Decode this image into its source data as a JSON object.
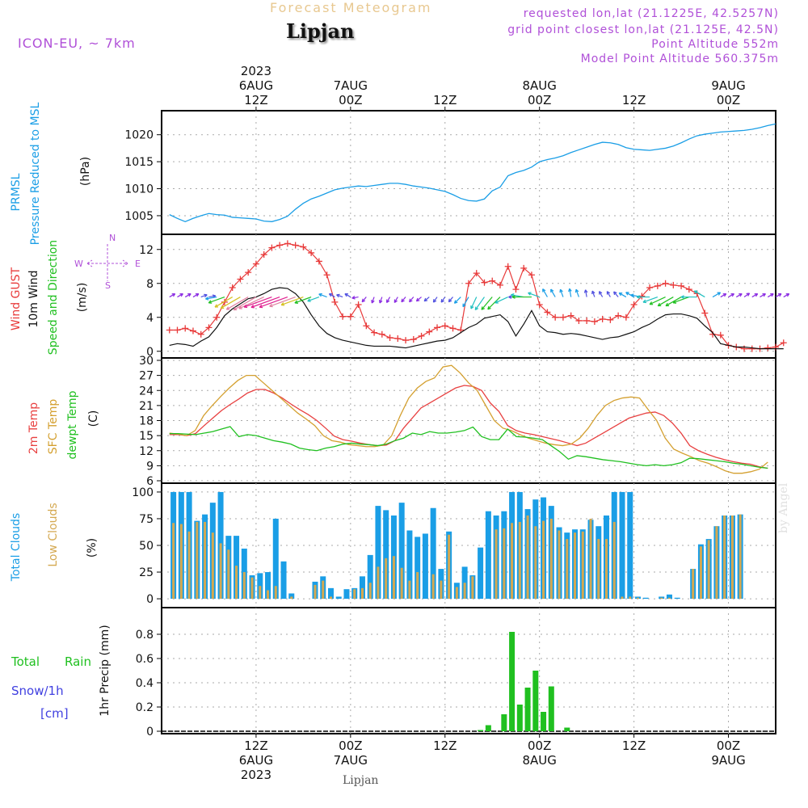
{
  "header": {
    "title": "Forecast Meteogram",
    "place": "Lipjan",
    "model": "ICON-EU, ~ 7km",
    "requested": "requested lon,lat (21.1225E, 42.5257N)",
    "grid_point": "grid point closest lon,lat (21.125E, 42.5N)",
    "point_altitude": "Point Altitude 552m",
    "model_altitude": "Model Point Altitude 560.375m"
  },
  "bottom_label": "Lipjan",
  "watermark": "by Angel",
  "colors": {
    "pressure": "#1a9ee6",
    "gust": "#e83a3a",
    "wind": "#111111",
    "direction": "#20c020",
    "temp2m": "#e84040",
    "sfc": "#d4a030",
    "dewpt": "#20c020",
    "total_cloud": "#1a9ee6",
    "low_cloud": "#d4a850",
    "rain": "#20c020",
    "snow": "#4040e0",
    "violet": "#b050d8"
  },
  "chart_data": {
    "type": "meteogram",
    "hours": [
      0,
      1,
      2,
      3,
      4,
      5,
      6,
      7,
      8,
      9,
      10,
      11,
      12,
      13,
      14,
      15,
      16,
      17,
      18,
      19,
      20,
      21,
      22,
      23,
      24,
      25,
      26,
      27,
      28,
      29,
      30,
      31,
      32,
      33,
      34,
      35,
      36,
      37,
      38,
      39,
      40,
      41,
      42,
      43,
      44,
      45,
      46,
      47,
      48,
      49,
      50,
      51,
      52,
      53,
      54,
      55,
      56,
      57,
      58,
      59,
      60,
      61,
      62,
      63,
      64,
      65,
      66,
      67,
      68,
      69,
      70,
      71,
      72,
      73,
      74,
      75,
      76,
      77
    ],
    "time_axis": {
      "top": [
        {
          "hour": 11,
          "lines": [
            "2023",
            "6AUG",
            "12Z"
          ]
        },
        {
          "hour": 23,
          "lines": [
            "7AUG",
            "00Z"
          ]
        },
        {
          "hour": 35,
          "lines": [
            "12Z"
          ]
        },
        {
          "hour": 47,
          "lines": [
            "8AUG",
            "00Z"
          ]
        },
        {
          "hour": 59,
          "lines": [
            "12Z"
          ]
        },
        {
          "hour": 71,
          "lines": [
            "9AUG",
            "00Z"
          ]
        }
      ],
      "bottom": [
        {
          "hour": 11,
          "lines": [
            "12Z",
            "6AUG",
            "2023"
          ]
        },
        {
          "hour": 23,
          "lines": [
            "00Z",
            "7AUG"
          ]
        },
        {
          "hour": 35,
          "lines": [
            "12Z"
          ]
        },
        {
          "hour": 47,
          "lines": [
            "00Z",
            "8AUG"
          ]
        },
        {
          "hour": 59,
          "lines": [
            "12Z"
          ]
        },
        {
          "hour": 71,
          "lines": [
            "00Z",
            "9AUG"
          ]
        }
      ]
    },
    "panels": [
      {
        "id": "pressure",
        "labels": [
          {
            "text": "PRMSL",
            "color": "#1a9ee6"
          },
          {
            "text": "Pressure Reduced to MSL",
            "color": "#1a9ee6"
          },
          {
            "text": "(hPa)",
            "color": "#111111"
          }
        ],
        "ylim": [
          1002,
          1024
        ],
        "yticks": [
          1005,
          1010,
          1015,
          1020
        ],
        "series": [
          {
            "values": [
              1005.2,
              1004.5,
              1003.9,
              1004.5,
              1005.0,
              1005.4,
              1005.2,
              1005.1,
              1004.7,
              1004.6,
              1004.5,
              1004.4,
              1004.0,
              1003.9,
              1004.3,
              1004.9,
              1006.2,
              1007.3,
              1008.1,
              1008.6,
              1009.2,
              1009.8,
              1010.1,
              1010.3,
              1010.5,
              1010.4,
              1010.6,
              1010.8,
              1011.0,
              1011.0,
              1010.8,
              1010.5,
              1010.3,
              1010.1,
              1009.8,
              1009.5,
              1008.9,
              1008.2,
              1007.8,
              1007.7,
              1008.1,
              1009.6,
              1010.3,
              1012.4,
              1013.0,
              1013.4,
              1014.0,
              1015.0,
              1015.4,
              1015.7,
              1016.1,
              1016.7,
              1017.2,
              1017.7,
              1018.2,
              1018.6,
              1018.5,
              1018.2,
              1017.6,
              1017.3,
              1017.2,
              1017.1,
              1017.3,
              1017.5,
              1017.9,
              1018.5,
              1019.2,
              1019.8,
              1020.1,
              1020.3,
              1020.5,
              1020.6,
              1020.7,
              1020.8,
              1021.0,
              1021.3,
              1021.7,
              1022.0
            ]
          }
        ]
      },
      {
        "id": "wind",
        "labels": [
          {
            "text": "Wind GUST",
            "color": "#e83a3a"
          },
          {
            "text": "10m Wind",
            "color": "#111111"
          },
          {
            "text": "Speed and Direction",
            "color": "#20c020"
          },
          {
            "text": "(m/s)",
            "color": "#111111"
          }
        ],
        "compass": [
          "N",
          "W",
          "E",
          "S"
        ],
        "ylim": [
          -0.5,
          13.5
        ],
        "yticks": [
          0,
          4,
          8,
          12
        ],
        "gust": [
          2.5,
          2.5,
          2.7,
          2.4,
          2.0,
          2.8,
          4.0,
          5.8,
          7.5,
          8.5,
          9.3,
          10.3,
          11.4,
          12.2,
          12.5,
          12.7,
          12.5,
          12.3,
          11.6,
          10.6,
          9.0,
          5.8,
          4.1,
          4.1,
          5.5,
          3.0,
          2.2,
          2.0,
          1.6,
          1.5,
          1.3,
          1.4,
          1.8,
          2.3,
          2.8,
          3.0,
          2.7,
          2.5,
          8.0,
          9.2,
          8.1,
          8.3,
          7.8,
          10.0,
          7.3,
          9.8,
          9.0,
          5.5,
          4.6,
          4.0,
          4.0,
          4.2,
          3.6,
          3.6,
          3.5,
          3.8,
          3.7,
          4.2,
          4.0,
          5.5,
          6.5,
          7.5,
          7.7,
          8.0,
          7.8,
          7.7,
          7.3,
          6.8,
          4.5,
          2.0,
          1.9,
          0.7,
          0.5,
          0.3,
          0.3,
          0.3,
          0.4,
          0.5,
          1.0
        ],
        "wind": [
          0.7,
          0.9,
          0.8,
          0.6,
          1.2,
          1.7,
          2.8,
          4.2,
          5.0,
          5.6,
          6.2,
          6.4,
          6.8,
          7.3,
          7.5,
          7.4,
          6.8,
          5.8,
          4.3,
          3.0,
          2.1,
          1.6,
          1.3,
          1.1,
          0.9,
          0.7,
          0.6,
          0.6,
          0.6,
          0.5,
          0.4,
          0.6,
          0.8,
          1.0,
          1.2,
          1.3,
          1.6,
          2.2,
          2.8,
          3.2,
          3.9,
          4.1,
          4.3,
          3.5,
          1.8,
          3.2,
          4.8,
          3.0,
          2.3,
          2.2,
          2.0,
          2.1,
          2.0,
          1.8,
          1.6,
          1.4,
          1.6,
          1.7,
          2.0,
          2.3,
          2.8,
          3.2,
          3.8,
          4.3,
          4.4,
          4.4,
          4.2,
          3.9,
          3.0,
          2.2,
          0.9,
          0.7,
          0.5,
          0.5,
          0.4,
          0.3,
          0.3,
          0.3,
          0.3
        ],
        "direction_deg": [
          60,
          60,
          60,
          60,
          70,
          80,
          260,
          250,
          240,
          240,
          240,
          240,
          245,
          250,
          250,
          250,
          250,
          250,
          250,
          250,
          290,
          300,
          290,
          300,
          260,
          220,
          200,
          200,
          210,
          210,
          220,
          220,
          230,
          230,
          215,
          215,
          220,
          225,
          210,
          205,
          215,
          220,
          225,
          245,
          270,
          280,
          270,
          290,
          330,
          330,
          340,
          350,
          340,
          350,
          340,
          330,
          330,
          320,
          300,
          300,
          280,
          270,
          250,
          245,
          240,
          240,
          250,
          270,
          300,
          60,
          60,
          60,
          60,
          55,
          60,
          60,
          60,
          60,
          60
        ]
      },
      {
        "id": "temp",
        "labels": [
          {
            "text": "2m Temp",
            "color": "#e84040"
          },
          {
            "text": "SFC Temp",
            "color": "#d4a030"
          },
          {
            "text": "dewpt Temp",
            "color": "#20c020"
          },
          {
            "text": "(C)",
            "color": "#111111"
          }
        ],
        "ylim": [
          6,
          30
        ],
        "yticks": [
          6,
          9,
          12,
          15,
          18,
          21,
          24,
          27,
          30
        ],
        "series": [
          {
            "name": "2m Temp",
            "color": "#e84040",
            "values": [
              15.2,
              15.2,
              15.0,
              15.4,
              17.0,
              18.5,
              20.0,
              21.2,
              22.3,
              23.5,
              24.2,
              24.2,
              23.5,
              22.5,
              21.3,
              20.2,
              19.2,
              18.0,
              16.5,
              14.9,
              14.2,
              13.9,
              13.5,
              13.2,
              13.0,
              13.1,
              14.0,
              16.5,
              18.5,
              20.5,
              21.5,
              22.5,
              23.5,
              24.5,
              25.0,
              24.8,
              24.0,
              21.5,
              19.8,
              17.0,
              16.0,
              15.5,
              15.2,
              14.8,
              14.4,
              14.0,
              13.5,
              13.0,
              13.5,
              14.5,
              15.5,
              16.5,
              17.5,
              18.5,
              19.0,
              19.5,
              19.7,
              19.0,
              17.5,
              15.5,
              13.0,
              12.0,
              11.3,
              10.7,
              10.2,
              9.8,
              9.5,
              9.3,
              8.8,
              8.5
            ],
            "x_start": 0
          },
          {
            "name": "SFC Temp",
            "color": "#d4a030",
            "values": [
              15.5,
              15.3,
              15.0,
              16.0,
              19.0,
              21.0,
              22.8,
              24.5,
              26.0,
              27.0,
              27.0,
              25.5,
              24.0,
              22.5,
              21.0,
              19.5,
              18.3,
              17.0,
              15.0,
              14.0,
              13.7,
              13.2,
              13.0,
              12.8,
              12.8,
              13.1,
              15.0,
              19.0,
              22.5,
              24.5,
              25.8,
              26.5,
              28.7,
              29.0,
              27.5,
              25.5,
              24.0,
              21.0,
              18.0,
              16.5,
              16.0,
              15.2,
              14.5,
              14.0,
              13.5,
              13.2,
              13.0,
              13.3,
              14.5,
              16.5,
              19.0,
              21.0,
              22.0,
              22.5,
              22.7,
              22.5,
              20.2,
              18.0,
              14.5,
              12.3,
              11.5,
              10.8,
              10.0,
              9.5,
              8.8,
              8.0,
              7.5,
              7.5,
              7.8,
              8.3,
              9.7
            ],
            "x_start": 0
          },
          {
            "name": "dewpt Temp",
            "color": "#20c020",
            "values": [
              15.4,
              15.4,
              15.3,
              15.2,
              15.5,
              15.8,
              16.3,
              16.8,
              14.8,
              15.2,
              15.0,
              14.5,
              14.0,
              13.7,
              13.3,
              12.5,
              12.2,
              12.0,
              12.5,
              12.8,
              13.3,
              13.5,
              13.3,
              13.2,
              13.0,
              13.3,
              14.0,
              14.5,
              15.5,
              15.2,
              15.8,
              15.5,
              15.5,
              15.7,
              16.0,
              16.7,
              14.8,
              14.2,
              14.2,
              16.3,
              14.8,
              14.7,
              14.5,
              14.2,
              13.0,
              11.8,
              10.3,
              11.0,
              10.8,
              10.5,
              10.2,
              10.0,
              9.8,
              9.5,
              9.2,
              9.0,
              9.2,
              9.0,
              9.2,
              9.6,
              10.5,
              10.4,
              10.2,
              10.0,
              9.8,
              9.5,
              9.3,
              9.0,
              8.7,
              8.5
            ],
            "x_start": 0
          }
        ]
      },
      {
        "id": "clouds",
        "labels": [
          {
            "text": "Total Clouds",
            "color": "#1a9ee6"
          },
          {
            "text": "Low Clouds",
            "color": "#d4a850"
          },
          {
            "text": "(%)",
            "color": "#111111"
          }
        ],
        "ylim": [
          -6,
          106
        ],
        "yticks": [
          0,
          25,
          50,
          75,
          100
        ],
        "total": [
          100,
          100,
          100,
          73,
          79,
          90,
          100,
          59,
          59,
          47,
          22,
          24,
          25,
          75,
          35,
          5,
          0,
          0,
          16,
          21,
          10,
          2,
          9,
          10,
          21,
          41,
          87,
          83,
          78,
          90,
          64,
          58,
          61,
          85,
          28,
          63,
          15,
          30,
          22,
          48,
          82,
          78,
          82,
          100,
          100,
          84,
          93,
          95,
          87,
          67,
          62,
          65,
          65,
          74,
          68,
          78,
          100,
          100,
          100,
          2,
          1,
          0,
          2,
          4,
          1,
          0,
          28,
          51,
          56,
          68,
          78,
          78,
          79
        ],
        "low": [
          71,
          70,
          63,
          72,
          72,
          62,
          52,
          46,
          31,
          25,
          20,
          12,
          8,
          12,
          0,
          2,
          0,
          0,
          13,
          17,
          2,
          0,
          0,
          9,
          10,
          15,
          30,
          38,
          40,
          29,
          17,
          25,
          0,
          23,
          17,
          60,
          11,
          15,
          21,
          0,
          0,
          65,
          66,
          71,
          72,
          78,
          68,
          73,
          75,
          64,
          56,
          62,
          63,
          75,
          56,
          56,
          72,
          2,
          2,
          1,
          0,
          0,
          1,
          1,
          0,
          0,
          28,
          49,
          55,
          68,
          78,
          78,
          79
        ]
      },
      {
        "id": "precip",
        "labels": [
          {
            "text": "1hr Precip (mm)",
            "color": "#111111"
          }
        ],
        "side_labels": [
          {
            "text": "Total",
            "color": "#20c020"
          },
          {
            "text": "Rain",
            "color": "#20c020"
          },
          {
            "text": "Snow/1h",
            "color": "#4040e0"
          },
          {
            "text": "[cm]",
            "color": "#4040e0"
          }
        ],
        "ylim": [
          0,
          1.0
        ],
        "yticks": [
          0,
          0.2,
          0.4,
          0.6,
          0.8
        ],
        "rain": {
          "hours": [
            39,
            40,
            41,
            42,
            43,
            44,
            45,
            46,
            47,
            48,
            49,
            50
          ],
          "values": [
            0.01,
            0.05,
            0.0,
            0.14,
            0.82,
            0.22,
            0.36,
            0.5,
            0.16,
            0.37,
            0.0,
            0.03
          ]
        }
      }
    ]
  }
}
